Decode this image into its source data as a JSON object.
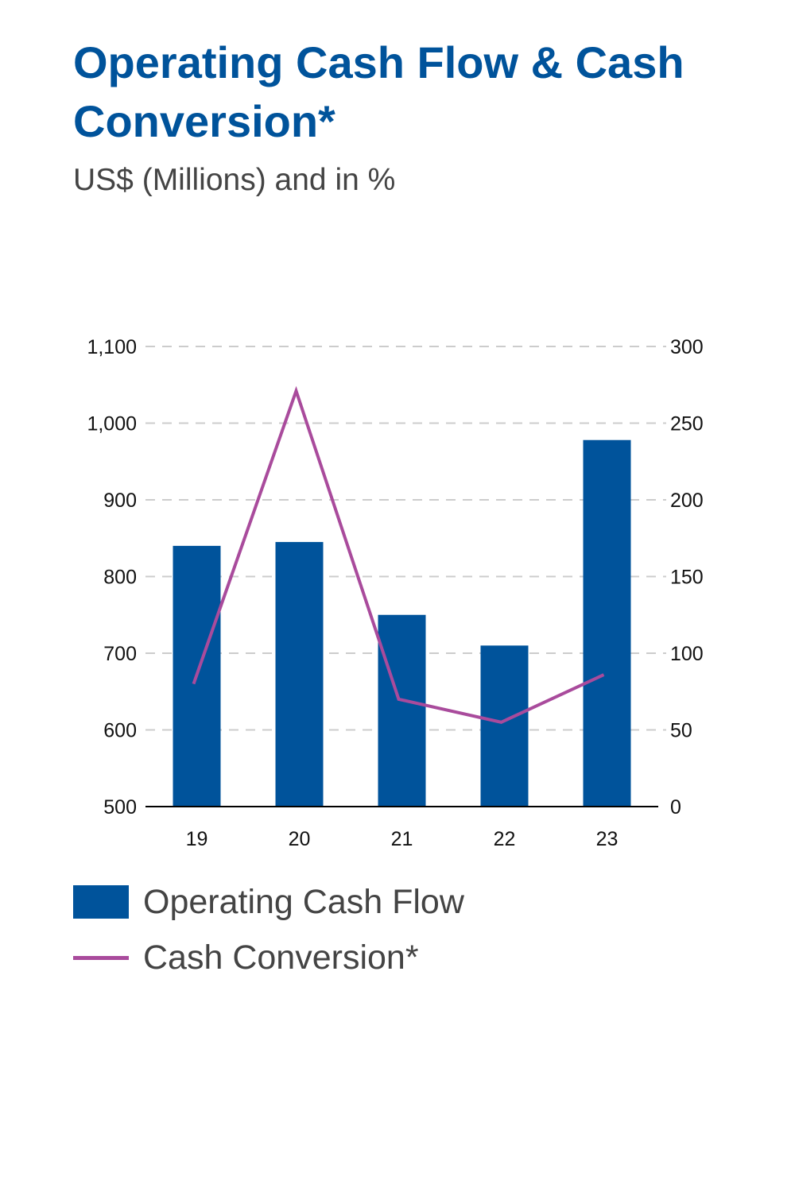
{
  "title": "Operating Cash Flow & Cash Conversion*",
  "subtitle": "US$ (Millions) and in %",
  "colors": {
    "bar": "#00539b",
    "line": "#a94b9c",
    "title": "#00539b",
    "grid": "#cccccc"
  },
  "chart_data": {
    "type": "bar",
    "title": "Operating Cash Flow & Cash Conversion*",
    "subtitle": "US$ (Millions) and in %",
    "categories": [
      "19",
      "20",
      "21",
      "22",
      "23"
    ],
    "series": [
      {
        "name": "Operating Cash Flow",
        "type": "bar",
        "axis": "left",
        "values": [
          840,
          845,
          750,
          710,
          978
        ]
      },
      {
        "name": "Cash Conversion*",
        "type": "line",
        "axis": "right",
        "values": [
          80,
          271,
          70,
          55,
          86
        ]
      }
    ],
    "y_left": {
      "min": 500,
      "max": 1100,
      "ticks": [
        "500",
        "600",
        "700",
        "800",
        "900",
        "1,000",
        "1,100"
      ]
    },
    "y_right": {
      "min": 0,
      "max": 300,
      "ticks": [
        "0",
        "50",
        "100",
        "150",
        "200",
        "250",
        "300"
      ]
    },
    "grid": "dashed horizontal",
    "legend": "bottom-left"
  },
  "legend": {
    "bar_label": "Operating Cash Flow",
    "line_label": "Cash Conversion*"
  }
}
